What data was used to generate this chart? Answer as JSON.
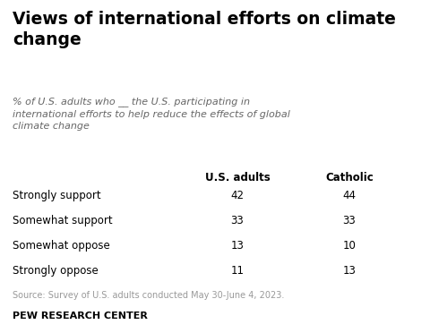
{
  "title": "Views of international efforts on climate\nchange",
  "subtitle": "% of U.S. adults who __ the U.S. participating in\ninternational efforts to help reduce the effects of global\nclimate change",
  "col_headers": [
    "U.S. adults",
    "Catholic"
  ],
  "rows": [
    {
      "label": "Strongly support",
      "us_adults": "42",
      "catholic": "44"
    },
    {
      "label": "Somewhat support",
      "us_adults": "33",
      "catholic": "33"
    },
    {
      "label": "Somewhat oppose",
      "us_adults": "13",
      "catholic": "10"
    },
    {
      "label": "Strongly oppose",
      "us_adults": "11",
      "catholic": "13"
    }
  ],
  "source": "Source: Survey of U.S. adults conducted May 30-June 4, 2023.",
  "footer": "PEW RESEARCH CENTER",
  "bg_color": "#ffffff",
  "title_color": "#000000",
  "subtitle_color": "#666666",
  "header_color": "#000000",
  "row_label_color": "#000000",
  "data_color": "#000000",
  "source_color": "#999999",
  "footer_color": "#000000"
}
